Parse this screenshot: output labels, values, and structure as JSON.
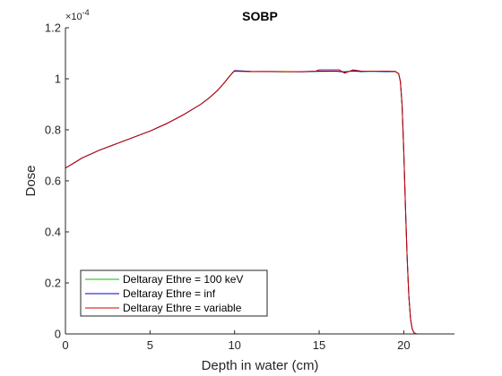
{
  "chart_data": {
    "type": "line",
    "title": "SOBP",
    "xlabel": "Depth in water (cm)",
    "ylabel": "Dose",
    "y_exponent_label": "×10",
    "y_exponent_power": "-4",
    "xlim": [
      0,
      23
    ],
    "ylim": [
      0,
      1.2
    ],
    "x_ticks": [
      0,
      5,
      10,
      15,
      20
    ],
    "x_tick_labels": [
      "0",
      "5",
      "10",
      "15",
      "20"
    ],
    "y_ticks": [
      0,
      0.2,
      0.4,
      0.6,
      0.8,
      1.0,
      1.2
    ],
    "y_tick_labels": [
      "0",
      "0.2",
      "0.4",
      "0.6",
      "0.8",
      "1",
      "1.2"
    ],
    "grid": false,
    "legend_position": "bottom-left",
    "series": [
      {
        "name": "Deltaray Ethre = 100 keV",
        "color": "#00c000",
        "x": [
          0,
          0.5,
          1,
          2,
          3,
          4,
          5,
          6,
          7,
          8,
          8.5,
          9,
          9.4,
          9.7,
          9.9,
          10,
          11,
          12,
          13,
          14,
          15,
          16,
          16.5,
          17,
          17.5,
          18,
          19,
          19.5,
          19.7,
          19.8,
          19.9,
          20,
          20.1,
          20.2,
          20.3,
          20.4,
          20.5,
          20.6,
          20.7,
          20.8,
          20.9,
          21,
          23
        ],
        "y": [
          0.65,
          0.67,
          0.69,
          0.72,
          0.745,
          0.77,
          0.795,
          0.825,
          0.86,
          0.9,
          0.925,
          0.955,
          0.985,
          1.01,
          1.025,
          1.03,
          1.028,
          1.028,
          1.027,
          1.028,
          1.029,
          1.03,
          1.028,
          1.03,
          1.029,
          1.029,
          1.029,
          1.028,
          1.02,
          0.99,
          0.9,
          0.72,
          0.5,
          0.3,
          0.15,
          0.06,
          0.02,
          0.005,
          0.001,
          0,
          0,
          0,
          0
        ]
      },
      {
        "name": "Deltaray Ethre = inf",
        "color": "#0000c8",
        "x": [
          0,
          0.5,
          1,
          2,
          3,
          4,
          5,
          6,
          7,
          8,
          8.5,
          9,
          9.4,
          9.7,
          9.9,
          10,
          11,
          12,
          13,
          14,
          15,
          16,
          16.5,
          17,
          17.5,
          18,
          19,
          19.5,
          19.7,
          19.8,
          19.9,
          20,
          20.1,
          20.2,
          20.3,
          20.4,
          20.5,
          20.6,
          20.7,
          20.8,
          20.9,
          21,
          23
        ],
        "y": [
          0.65,
          0.67,
          0.69,
          0.72,
          0.745,
          0.77,
          0.795,
          0.825,
          0.86,
          0.9,
          0.925,
          0.955,
          0.985,
          1.01,
          1.025,
          1.032,
          1.029,
          1.028,
          1.028,
          1.027,
          1.03,
          1.03,
          1.026,
          1.031,
          1.028,
          1.03,
          1.028,
          1.029,
          1.02,
          0.99,
          0.9,
          0.72,
          0.5,
          0.3,
          0.15,
          0.06,
          0.02,
          0.005,
          0.001,
          0,
          0,
          0,
          0
        ]
      },
      {
        "name": "Deltaray Ethre = variable",
        "color": "#d00000",
        "x": [
          0,
          0.5,
          1,
          2,
          3,
          4,
          5,
          6,
          7,
          8,
          8.5,
          9,
          9.4,
          9.7,
          9.9,
          10,
          11,
          12,
          13,
          14,
          14.8,
          15,
          16,
          16.2,
          16.5,
          17,
          17.5,
          18,
          19,
          19.5,
          19.7,
          19.8,
          19.9,
          20,
          20.1,
          20.2,
          20.3,
          20.4,
          20.5,
          20.6,
          20.7,
          20.8,
          20.9,
          21,
          23
        ],
        "y": [
          0.65,
          0.67,
          0.69,
          0.72,
          0.745,
          0.77,
          0.795,
          0.825,
          0.86,
          0.9,
          0.925,
          0.955,
          0.985,
          1.01,
          1.025,
          1.03,
          1.028,
          1.029,
          1.028,
          1.028,
          1.03,
          1.035,
          1.035,
          1.035,
          1.022,
          1.035,
          1.03,
          1.03,
          1.03,
          1.029,
          1.02,
          0.99,
          0.9,
          0.72,
          0.5,
          0.3,
          0.15,
          0.06,
          0.02,
          0.005,
          0.001,
          0,
          0,
          0,
          0
        ]
      }
    ]
  }
}
